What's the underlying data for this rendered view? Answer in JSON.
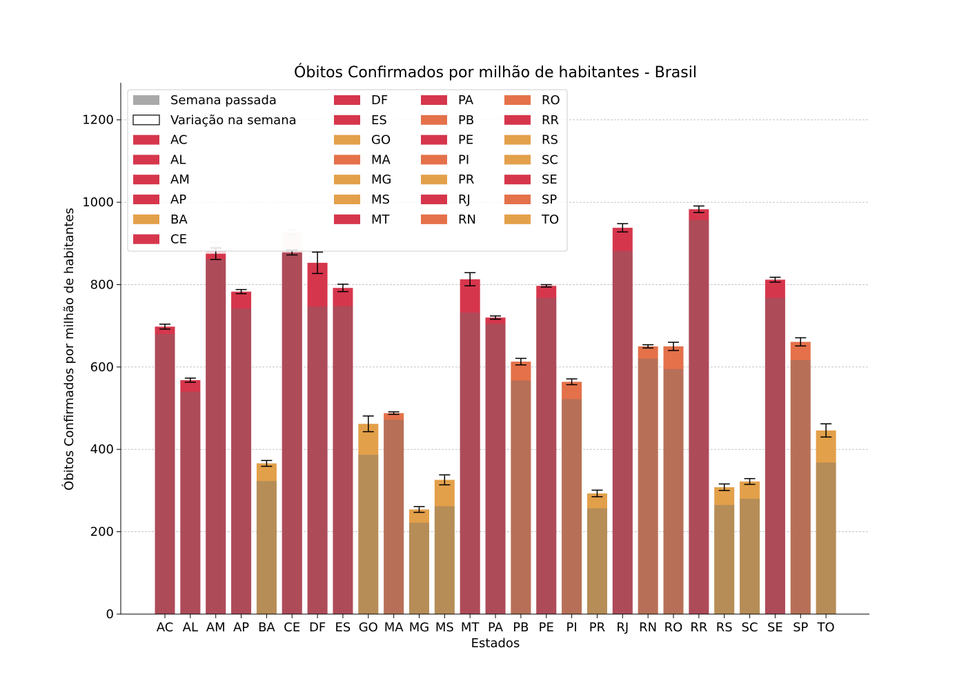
{
  "chart_data": {
    "type": "bar",
    "title": "Óbitos Confirmados por milhão de habitantes - Brasil",
    "xlabel": "Estados",
    "ylabel": "Óbitos Confirmados por milhão de habitantes",
    "ylim": [
      0,
      1290
    ],
    "yticks": [
      0,
      200,
      400,
      600,
      800,
      1000,
      1200
    ],
    "grid": "horizontal dashed",
    "legend_position": "top-left",
    "colors": {
      "red": "#d6364c",
      "orange": "#e4714a",
      "gold": "#e3a04a",
      "previous_week": "#a9a9a9",
      "error_bar": "#000000"
    },
    "legend": {
      "special": [
        "Semana passada",
        "Variação na semana"
      ]
    },
    "categories": [
      "AC",
      "AL",
      "AM",
      "AP",
      "BA",
      "CE",
      "DF",
      "ES",
      "GO",
      "MA",
      "MG",
      "MS",
      "MT",
      "PA",
      "PB",
      "PE",
      "PI",
      "PR",
      "RJ",
      "RN",
      "RO",
      "RR",
      "RS",
      "SC",
      "SE",
      "SP",
      "TO"
    ],
    "category_colors": [
      "red",
      "red",
      "red",
      "red",
      "gold",
      "red",
      "red",
      "red",
      "gold",
      "orange",
      "gold",
      "gold",
      "red",
      "red",
      "orange",
      "red",
      "orange",
      "gold",
      "red",
      "orange",
      "orange",
      "red",
      "gold",
      "gold",
      "red",
      "orange",
      "gold"
    ],
    "series": [
      {
        "name": "Semana passada",
        "values": [
          680,
          540,
          862,
          742,
          323,
          878,
          747,
          748,
          387,
          472,
          222,
          262,
          732,
          705,
          567,
          768,
          522,
          257,
          882,
          620,
          595,
          957,
          265,
          280,
          768,
          617,
          368
        ]
      },
      {
        "name": "Óbitos Confirmados",
        "values": [
          698,
          568,
          875,
          783,
          366,
          878,
          853,
          792,
          462,
          488,
          254,
          326,
          813,
          720,
          613,
          797,
          564,
          293,
          938,
          650,
          650,
          983,
          308,
          322,
          812,
          661,
          446
        ]
      }
    ],
    "error": [
      6,
      5,
      14,
      5,
      7,
      6,
      26,
      9,
      19,
      3,
      7,
      12,
      16,
      4,
      8,
      3,
      7,
      8,
      10,
      4,
      10,
      8,
      8,
      7,
      6,
      10,
      16
    ],
    "ghost_bar": {
      "category": "CE",
      "value": 927,
      "error": 6
    },
    "ghost_cap": {
      "category": "AM",
      "value": 885,
      "error": 18
    }
  }
}
